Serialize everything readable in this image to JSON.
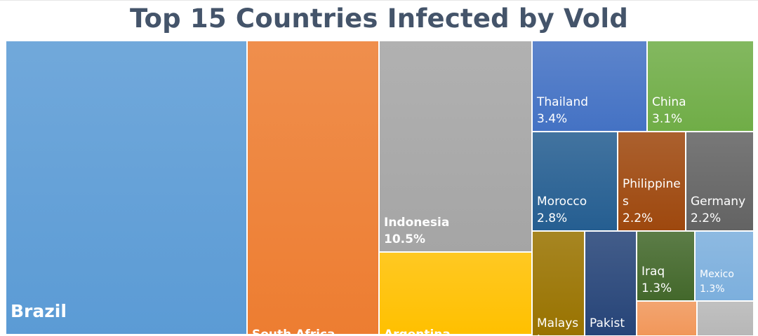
{
  "chart_data": {
    "type": "treemap",
    "title": "Top 15 Countries Infected by Vold",
    "items": [
      {
        "name": "Brazil",
        "value": "",
        "color": "#5b9bd5"
      },
      {
        "name": "South Africa",
        "value": "",
        "color": "#ed7d31"
      },
      {
        "name": "Indonesia",
        "value": "10.5%",
        "color": "#a5a5a5"
      },
      {
        "name": "Argentina",
        "value": "",
        "color": "#ffc000"
      },
      {
        "name": "Thailand",
        "value": "3.4%",
        "color": "#4472c4"
      },
      {
        "name": "China",
        "value": "3.1%",
        "color": "#70ad47"
      },
      {
        "name": "Morocco",
        "value": "2.8%",
        "color": "#255e91"
      },
      {
        "name": "Philippines",
        "value": "2.2%",
        "color": "#9e480e"
      },
      {
        "name": "Germany",
        "value": "2.2%",
        "color": "#636363"
      },
      {
        "name": "Malaysia",
        "value": "",
        "color": "#997300"
      },
      {
        "name": "Pakistan",
        "value": "",
        "color": "#264478"
      },
      {
        "name": "Iraq",
        "value": "1.3%",
        "color": "#43682b"
      },
      {
        "name": "Mexico",
        "value": "1.3%",
        "color": "#7cafdd"
      },
      {
        "name": "",
        "value": "",
        "color": "#f1975a"
      },
      {
        "name": "",
        "value": "",
        "color": "#b7b7b7"
      }
    ]
  }
}
